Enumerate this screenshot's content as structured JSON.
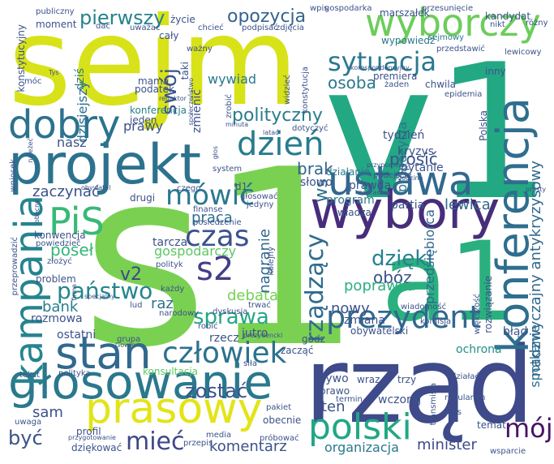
{
  "palette": [
    "#440154",
    "#3b528b",
    "#21918c",
    "#5ec962",
    "#fde725",
    "#31688e",
    "#35b779",
    "#dbe222"
  ],
  "words": [
    {
      "text": "sejm",
      "color": "#d8e219"
    },
    {
      "text": "s1",
      "color": "#7ad151"
    },
    {
      "text": "v1",
      "color": "#23a884"
    },
    {
      "text": "a1",
      "color": "#2ab07f"
    },
    {
      "text": "rząd",
      "color": "#3e4a89"
    },
    {
      "text": "projekt",
      "color": "#2c728e"
    },
    {
      "text": "wybory",
      "color": "#472d7b"
    },
    {
      "text": "głosowanie",
      "color": "#2a788e"
    },
    {
      "text": "konferencja",
      "color": "#2e6e8e"
    },
    {
      "text": "ustawa",
      "color": "#31688e"
    },
    {
      "text": "wyborczy",
      "color": "#6ccd5a"
    },
    {
      "text": "stan",
      "color": "#31688e"
    },
    {
      "text": "prasowy",
      "color": "#e2e418"
    },
    {
      "text": "kampania",
      "color": "#25848e"
    },
    {
      "text": "dobry",
      "color": "#2c728e"
    },
    {
      "text": "PiS",
      "color": "#38b977"
    },
    {
      "text": "s2",
      "color": "#433e85"
    },
    {
      "text": "polski",
      "color": "#22a785"
    },
    {
      "text": "prezydent",
      "color": "#31688e"
    },
    {
      "text": "człowiek",
      "color": "#2c728e"
    },
    {
      "text": "dzień",
      "color": "#287c8e"
    },
    {
      "text": "mówić",
      "color": "#2a788e"
    },
    {
      "text": "czas",
      "color": "#3b528b"
    },
    {
      "text": "sytuacja",
      "color": "#2a788e"
    },
    {
      "text": "mój",
      "color": "#481467"
    },
    {
      "text": "rządzący",
      "color": "#2f6c8e"
    },
    {
      "text": "dzięki",
      "color": "#26828e"
    },
    {
      "text": "mieć",
      "color": "#3f4788"
    },
    {
      "text": "państwo",
      "color": "#25858e"
    },
    {
      "text": "być",
      "color": "#3b528b"
    },
    {
      "text": "pierwszy",
      "color": "#26828e"
    },
    {
      "text": "opozycja",
      "color": "#33638d"
    },
    {
      "text": "swój",
      "color": "#3b528b"
    },
    {
      "text": "polityczny",
      "color": "#287d8e"
    },
    {
      "text": "v2",
      "color": "#3f4788"
    },
    {
      "text": "sprawa",
      "color": "#22a785"
    },
    {
      "text": "zostać",
      "color": "#3b528b"
    },
    {
      "text": "lewica",
      "color": "#31688e"
    },
    {
      "text": "ws",
      "color": "#2e6e8e"
    },
    {
      "text": "nowy",
      "color": "#3b528b"
    },
    {
      "text": "obóz",
      "color": "#3b528b"
    },
    {
      "text": "osoba",
      "color": "#2a788e"
    },
    {
      "text": "brak",
      "color": "#33638d"
    },
    {
      "text": "prosić",
      "color": "#3b528b"
    },
    {
      "text": "zaczynać",
      "color": "#3b528b"
    },
    {
      "text": "praca",
      "color": "#2c728e"
    },
    {
      "text": "poseł",
      "color": "#34b679"
    },
    {
      "text": "bank",
      "color": "#287d8e"
    },
    {
      "text": "debata",
      "color": "#75d054"
    },
    {
      "text": "poprawka",
      "color": "#2ab07f"
    },
    {
      "text": "raz",
      "color": "#2c728e"
    },
    {
      "text": "nagranie",
      "color": "#31688e"
    },
    {
      "text": "ten",
      "color": "#3b528b"
    },
    {
      "text": "sam",
      "color": "#3b528b"
    },
    {
      "text": "minister",
      "color": "#3e4a89"
    },
    {
      "text": "komentarz",
      "color": "#3b528b"
    },
    {
      "text": "organizacja",
      "color": "#2a788e"
    },
    {
      "text": "spotkanie",
      "color": "#2c728e"
    },
    {
      "text": "nadzwyczajny antykryzysowy",
      "color": "#31688e"
    },
    {
      "text": "propozycja",
      "color": "#2a788e"
    },
    {
      "text": "przedsiębiorca",
      "color": "#31688e"
    },
    {
      "text": "gospodarczy",
      "color": "#5cc863"
    },
    {
      "text": "dziś",
      "color": "#2a788e"
    },
    {
      "text": "dzisiejszy",
      "color": "#2c728e"
    },
    {
      "text": "prawy",
      "color": "#3b528b"
    },
    {
      "text": "nasz",
      "color": "#3b528b"
    },
    {
      "text": "wywiad",
      "color": "#2a788e"
    },
    {
      "text": "zmienić",
      "color": "#3b528b"
    },
    {
      "text": "konferencja",
      "color": "#287d8e"
    },
    {
      "text": "tydzień",
      "color": "#3b528b"
    },
    {
      "text": "kryzys",
      "color": "#3b528b"
    },
    {
      "text": "pytanie",
      "color": "#3b528b"
    },
    {
      "text": "prawda",
      "color": "#3b528b"
    },
    {
      "text": "program",
      "color": "#2a788e"
    },
    {
      "text": "partia",
      "color": "#3b528b"
    },
    {
      "text": "władza",
      "color": "#3b528b"
    },
    {
      "text": "słowo",
      "color": "#3b528b"
    },
    {
      "text": "działanie",
      "color": "#2a788e"
    },
    {
      "text": "tarcza",
      "color": "#3b528b"
    },
    {
      "text": "polityk",
      "color": "#3b528b"
    },
    {
      "text": "rozmowa",
      "color": "#3b528b"
    },
    {
      "text": "ostatni",
      "color": "#3b528b"
    },
    {
      "text": "problem",
      "color": "#3b528b"
    },
    {
      "text": "konwencja",
      "color": "#3b528b"
    },
    {
      "text": "powiedzieć",
      "color": "#3b528b"
    },
    {
      "text": "złożyć",
      "color": "#3b528b"
    },
    {
      "text": "jeden",
      "color": "#3b528b"
    },
    {
      "text": "drugi",
      "color": "#3b528b"
    },
    {
      "text": "moment",
      "color": "#3b528b"
    },
    {
      "text": "mama",
      "color": "#3b528b"
    },
    {
      "text": "podatek",
      "color": "#3b528b"
    },
    {
      "text": "cały",
      "color": "#3b528b"
    },
    {
      "text": "taki",
      "color": "#3b528b"
    },
    {
      "text": "życie",
      "color": "#3b528b"
    },
    {
      "text": "chcieć",
      "color": "#3b528b"
    },
    {
      "text": "dać",
      "color": "#3b528b"
    },
    {
      "text": "publiczny",
      "color": "#3b528b"
    },
    {
      "text": "konstytucyjny",
      "color": "#3b528b"
    },
    {
      "text": "móc",
      "color": "#3b528b"
    },
    {
      "text": "wypowiedź",
      "color": "#2a788e"
    },
    {
      "text": "sejmowy",
      "color": "#2a788e"
    },
    {
      "text": "premiera",
      "color": "#3b528b"
    },
    {
      "text": "żaden",
      "color": "#3b528b"
    },
    {
      "text": "chwila",
      "color": "#3b528b"
    },
    {
      "text": "inny",
      "color": "#3b528b"
    },
    {
      "text": "przedstawić",
      "color": "#3b528b"
    },
    {
      "text": "lewicowy",
      "color": "#3b528b"
    },
    {
      "text": "kandydat",
      "color": "#3b528b"
    },
    {
      "text": "różny",
      "color": "#3b528b"
    },
    {
      "text": "marszałek",
      "color": "#3b528b"
    },
    {
      "text": "gospodarka",
      "color": "#3b528b"
    },
    {
      "text": "przesunięcie",
      "color": "#3b528b"
    },
    {
      "text": "Polska",
      "color": "#3b528b"
    },
    {
      "text": "epidemia",
      "color": "#3b528b"
    },
    {
      "text": "podejście",
      "color": "#3b528b"
    },
    {
      "text": "dotyczyć",
      "color": "#3b528b"
    },
    {
      "text": "d1",
      "color": "#3b528b"
    },
    {
      "text": "głosować",
      "color": "#3b528b"
    },
    {
      "text": "jedyny",
      "color": "#3b528b"
    },
    {
      "text": "czego",
      "color": "#3b528b"
    },
    {
      "text": "system",
      "color": "#3b528b"
    },
    {
      "text": "przypominać",
      "color": "#3b528b"
    },
    {
      "text": "godzina",
      "color": "#3b528b"
    },
    {
      "text": "zapraszać",
      "color": "#3b528b"
    },
    {
      "text": "rozwiązanie",
      "color": "#3b528b"
    },
    {
      "text": "wiadomość",
      "color": "#3b528b"
    },
    {
      "text": "zmiana",
      "color": "#3b528b"
    },
    {
      "text": "komisja",
      "color": "#3b528b"
    },
    {
      "text": "błąd",
      "color": "#3b528b"
    },
    {
      "text": "ochrona",
      "color": "#21918c"
    },
    {
      "text": "obywatelski",
      "color": "#3b528b"
    },
    {
      "text": "godz",
      "color": "#3b528b"
    },
    {
      "text": "zacząć",
      "color": "#3b528b"
    },
    {
      "text": "rzecz",
      "color": "#3b528b"
    },
    {
      "text": "jutro",
      "color": "#3b528b"
    },
    {
      "text": "prezydencki",
      "color": "#3b528b"
    },
    {
      "text": "robić",
      "color": "#3b528b"
    },
    {
      "text": "dyskusja",
      "color": "#3b528b"
    },
    {
      "text": "trwać",
      "color": "#3b528b"
    },
    {
      "text": "narodowy",
      "color": "#3b528b"
    },
    {
      "text": "lud",
      "color": "#3b528b"
    },
    {
      "text": "każdy",
      "color": "#3b528b"
    },
    {
      "text": "grupa",
      "color": "#3b528b"
    },
    {
      "text": "konsultacja",
      "color": "#5ec962"
    },
    {
      "text": "polityka",
      "color": "#3b528b"
    },
    {
      "text": "tekst",
      "color": "#3b528b"
    },
    {
      "text": "żywo",
      "color": "#3b528b"
    },
    {
      "text": "wraz",
      "color": "#3b528b"
    },
    {
      "text": "trzy",
      "color": "#3b528b"
    },
    {
      "text": "prawo",
      "color": "#3b528b"
    },
    {
      "text": "termin",
      "color": "#3b528b"
    },
    {
      "text": "wczoraj",
      "color": "#3b528b"
    },
    {
      "text": "transmisja",
      "color": "#3b528b"
    },
    {
      "text": "regulamin",
      "color": "#3b528b"
    },
    {
      "text": "sens",
      "color": "#3b528b"
    },
    {
      "text": "temat",
      "color": "#3b528b"
    },
    {
      "text": "wsparcie",
      "color": "#3b528b"
    },
    {
      "text": "dziękować",
      "color": "#3b528b"
    },
    {
      "text": "profil",
      "color": "#3b528b"
    },
    {
      "text": "uwaga",
      "color": "#3b528b"
    },
    {
      "text": "przygotowanie",
      "color": "#3b528b"
    },
    {
      "text": "przepis",
      "color": "#3b528b"
    },
    {
      "text": "media",
      "color": "#3b528b"
    },
    {
      "text": "próbować",
      "color": "#3b528b"
    },
    {
      "text": "obecnie",
      "color": "#3b528b"
    },
    {
      "text": "pakiet",
      "color": "#3b528b"
    },
    {
      "text": "kolejny",
      "color": "#3b528b"
    },
    {
      "text": "siła",
      "color": "#3b528b"
    },
    {
      "text": "posiedzenie",
      "color": "#3b528b"
    },
    {
      "text": "finanse",
      "color": "#3b528b"
    },
    {
      "text": "obywatel",
      "color": "#3b528b"
    },
    {
      "text": "wniosek",
      "color": "#3b528b"
    },
    {
      "text": "przeprowadzić",
      "color": "#3b528b"
    },
    {
      "text": "większość",
      "color": "#3b528b"
    },
    {
      "text": "działać",
      "color": "#3b528b"
    },
    {
      "text": "nikt",
      "color": "#3b528b"
    },
    {
      "text": "wpis",
      "color": "#3b528b"
    },
    {
      "text": "podpisać",
      "color": "#3b528b"
    },
    {
      "text": "zdjęcia",
      "color": "#3b528b"
    },
    {
      "text": "ważny",
      "color": "#3b528b"
    },
    {
      "text": "redaktor",
      "color": "#3b528b"
    },
    {
      "text": "społeczeństwo",
      "color": "#3b528b"
    },
    {
      "text": "zrobić",
      "color": "#3b528b"
    },
    {
      "text": "minuta",
      "color": "#3b528b"
    },
    {
      "text": "widzieć",
      "color": "#3b528b"
    },
    {
      "text": "konstytucja",
      "color": "#3b528b"
    },
    {
      "text": "korespondencyjny",
      "color": "#3b528b"
    },
    {
      "text": "uważać",
      "color": "#3b528b"
    },
    {
      "text": "Tys",
      "color": "#3b528b"
    },
    {
      "text": "Gowin",
      "color": "#3b528b"
    },
    {
      "text": "firma",
      "color": "#3b528b"
    },
    {
      "text": "obecny",
      "color": "#3b528b"
    },
    {
      "text": "specjalny",
      "color": "#3b528b"
    },
    {
      "text": "prosty",
      "color": "#3b528b"
    },
    {
      "text": "należeć",
      "color": "#3b528b"
    },
    {
      "text": "latać",
      "color": "#3b528b"
    },
    {
      "text": "głos",
      "color": "#3b528b"
    }
  ]
}
